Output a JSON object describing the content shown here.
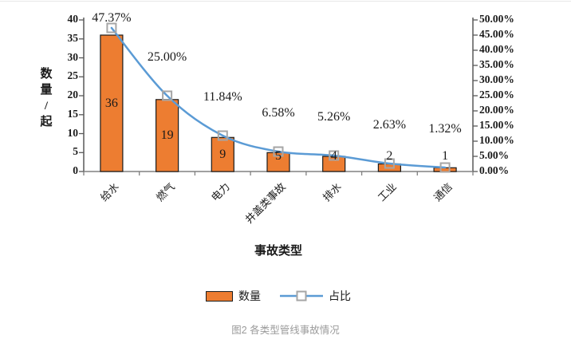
{
  "figure": {
    "caption": "图2 各类型管线事故情况"
  },
  "chart_data": {
    "type": "bar",
    "combo": "bar+line",
    "title": "",
    "categories": [
      "给水",
      "燃气",
      "电力",
      "井盖类事故",
      "排水",
      "工业",
      "通信"
    ],
    "xlabel": "事故类型",
    "left_axis": {
      "title": "数量/起",
      "title_stacked": "数\n量\n/\n起",
      "min": 0,
      "max": 40,
      "step": 5
    },
    "right_axis": {
      "min": 0,
      "max": 50,
      "step": 5,
      "suffix": "%"
    },
    "series": [
      {
        "name": "数量",
        "type": "bar",
        "axis": "left",
        "color": "#ED7D31",
        "border_color": "#1c1c1c",
        "values": [
          36,
          19,
          9,
          5,
          4,
          2,
          1
        ]
      },
      {
        "name": "占比",
        "type": "line",
        "axis": "right",
        "color": "#5B9BD5",
        "marker_color": "#A6A6A6",
        "values": [
          47.37,
          25.0,
          11.84,
          6.58,
          5.26,
          2.63,
          1.32
        ],
        "labels": [
          "47.37%",
          "25.00%",
          "11.84%",
          "6.58%",
          "5.26%",
          "2.63%",
          "1.32%"
        ]
      }
    ],
    "legend": [
      "数量",
      "占比"
    ],
    "legend_position": "bottom",
    "grid": "off"
  }
}
